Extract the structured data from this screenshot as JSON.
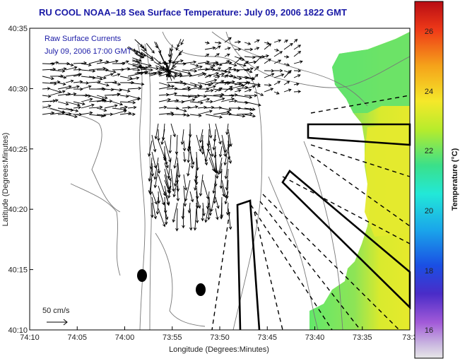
{
  "figure": {
    "title": "RU COOL  NOAA–18  Sea Surface Temperature:  July 09, 2006 1822 GMT",
    "inset_title": "Raw Surface Currents",
    "inset_date": "July 09, 2006 17:00 GMT",
    "xlabel": "Longitude (Degrees:Minutes)",
    "ylabel": "Latitude (Degrees:Minutes)",
    "xticks": [
      "74:10",
      "74:05",
      "74:00",
      "73:55",
      "73:50",
      "73:45",
      "73:40",
      "73:35",
      "73:3"
    ],
    "yticks": [
      "40:35",
      "40:30",
      "40:25",
      "40:20",
      "40:15",
      "40:10"
    ],
    "scale_label": "50 cm/s",
    "colorbar_label": "Temperature (°C)",
    "colorbar_ticks": [
      "26",
      "24",
      "22",
      "20",
      "18",
      "16"
    ],
    "colors": {
      "title": "#1a1aa6",
      "land_outline": "#777777",
      "arrows": "#000000",
      "sst_green": "#63e86a",
      "sst_yellow": "#e6ea2c"
    }
  }
}
